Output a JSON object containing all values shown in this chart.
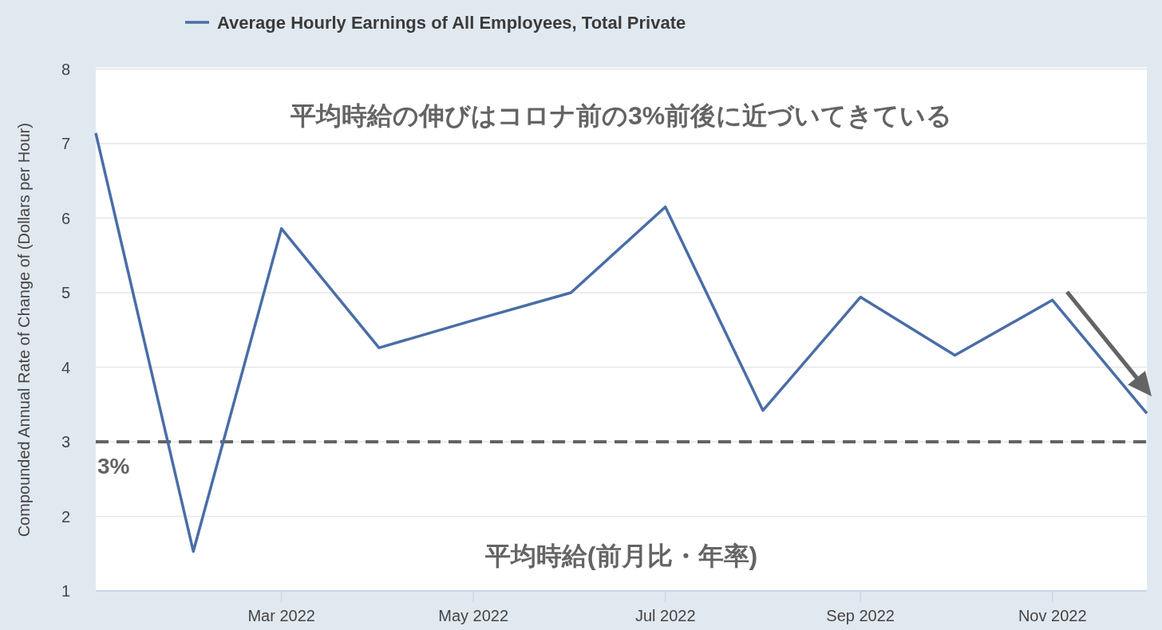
{
  "chart_data": {
    "type": "line",
    "ylabel": "Compounded Annual Rate of Change of (Dollars per Hour)",
    "annotations": [
      "平均時給の伸びはコロナ前の3%前後に近づいてきている",
      "平均時給(前月比・年率)"
    ],
    "x": [
      "2022-01",
      "2022-02",
      "2022-03",
      "2022-04",
      "2022-05",
      "2022-06",
      "2022-07",
      "2022-08",
      "2022-09",
      "2022-10",
      "2022-11",
      "2022-12"
    ],
    "series": [
      {
        "name": "Average Hourly Earnings of All Employees, Total Private",
        "color": "#4a6da7",
        "values": [
          7.14,
          1.53,
          5.86,
          4.26,
          4.63,
          5.0,
          6.15,
          3.42,
          4.94,
          4.16,
          4.9,
          3.38
        ]
      }
    ],
    "xlim": [
      "2022-01",
      "2022-12"
    ],
    "xticks": [
      {
        "value": "2022-03",
        "label": "Mar 2022"
      },
      {
        "value": "2022-05",
        "label": "May 2022"
      },
      {
        "value": "2022-07",
        "label": "Jul 2022"
      },
      {
        "value": "2022-09",
        "label": "Sep 2022"
      },
      {
        "value": "2022-11",
        "label": "Nov 2022"
      }
    ],
    "ylim": [
      1,
      8
    ],
    "yticks": [
      1,
      2,
      3,
      4,
      5,
      6,
      7,
      8
    ],
    "grid": "y",
    "legend": "top left",
    "ref_lines": [
      {
        "axis": "y",
        "value": 3,
        "label": "3%",
        "color": "#646464",
        "line_style": "dashed"
      }
    ]
  }
}
